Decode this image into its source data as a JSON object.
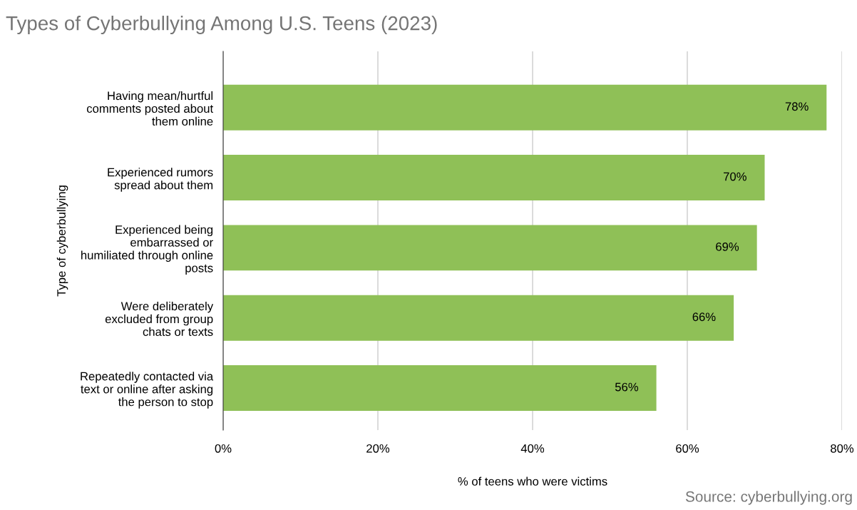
{
  "chart_data": {
    "type": "bar",
    "orientation": "horizontal",
    "title": "Types of Cyberbullying Among U.S. Teens (2023)",
    "xlabel": "% of teens who were victims",
    "ylabel": "Type of cyberbullying",
    "categories": [
      "Having mean/hurtful\ncomments posted about\nthem online",
      "Experienced rumors\nspread about them",
      "Experienced being\nembarrassed or\nhumiliated through online\nposts",
      "Were deliberately\nexcluded from group\nchats or texts",
      "Repeatedly contacted via\ntext or online after asking\nthe person to stop"
    ],
    "values": [
      78,
      70,
      69,
      66,
      56
    ],
    "value_labels": [
      "78%",
      "70%",
      "69%",
      "66%",
      "56%"
    ],
    "color": "#8fc057",
    "xlim": [
      0,
      80
    ],
    "xticks": [
      {
        "value": 0,
        "label": "0%"
      },
      {
        "value": 20,
        "label": "20%"
      },
      {
        "value": 40,
        "label": "40%"
      },
      {
        "value": 60,
        "label": "60%"
      },
      {
        "value": 80,
        "label": "80%"
      }
    ],
    "grid": "x",
    "annotations": [
      "Source: cyberbullying.org"
    ]
  }
}
